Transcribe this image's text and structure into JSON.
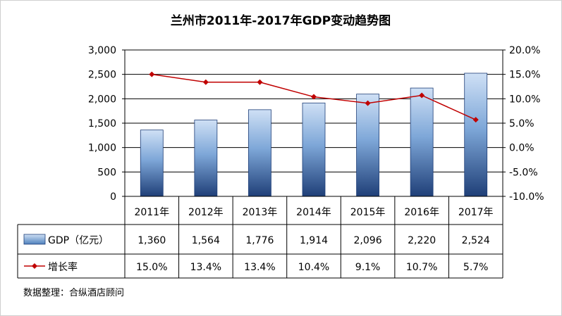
{
  "chart_data": {
    "type": "bar",
    "title": "兰州市2011年-2017年GDP变动趋势图",
    "categories": [
      "2011年",
      "2012年",
      "2013年",
      "2014年",
      "2015年",
      "2016年",
      "2017年"
    ],
    "series": [
      {
        "name": "GDP（亿元）",
        "type": "bar",
        "axis": "left",
        "color": "#4f81bd",
        "values": [
          1360,
          1564,
          1776,
          1914,
          2096,
          2220,
          2524
        ],
        "labels": [
          "1,360",
          "1,564",
          "1,776",
          "1,914",
          "2,096",
          "2,220",
          "2,524"
        ]
      },
      {
        "name": "增长率",
        "type": "line",
        "axis": "right",
        "color": "#c00000",
        "values": [
          15.0,
          13.4,
          13.4,
          10.4,
          9.1,
          10.7,
          5.7
        ],
        "labels": [
          "15.0%",
          "13.4%",
          "13.4%",
          "10.4%",
          "9.1%",
          "10.7%",
          "5.7%"
        ]
      }
    ],
    "ylim_left": [
      0,
      3000
    ],
    "yticks_left": [
      "0",
      "500",
      "1,000",
      "1,500",
      "2,000",
      "2,500",
      "3,000"
    ],
    "ylim_right": [
      -10,
      20
    ],
    "yticks_right": [
      "-10.0%",
      "-5.0%",
      "0.0%",
      "5.0%",
      "10.0%",
      "15.0%",
      "20.0%"
    ],
    "grid": true,
    "legend": "data-table",
    "source": "数据整理：合纵酒店顾问"
  }
}
